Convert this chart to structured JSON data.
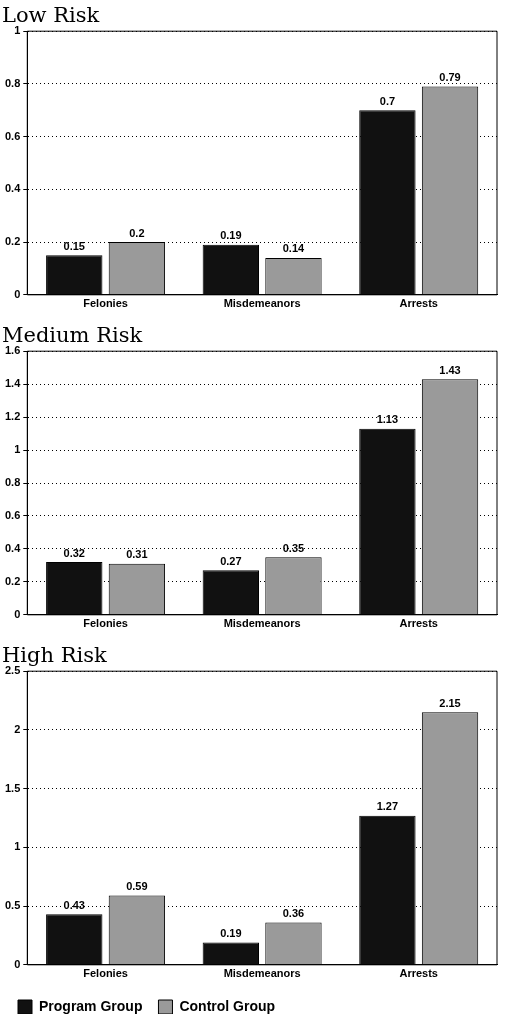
{
  "chart_data": [
    {
      "type": "bar",
      "title": "Low Risk",
      "categories": [
        "Felonies",
        "Misdemeanors",
        "Arrests"
      ],
      "series": [
        {
          "color": "#111111",
          "values": [
            0.15,
            0.19,
            0.7
          ]
        },
        {
          "color": "#9a9a9a",
          "values": [
            0.2,
            0.14,
            0.79
          ]
        }
      ],
      "ylim": [
        0,
        1
      ],
      "yticks": [
        0,
        0.2,
        0.4,
        0.6,
        0.8,
        1
      ],
      "grid": "y",
      "data_labels": true,
      "legend": false
    },
    {
      "type": "bar",
      "title": "Medium Risk",
      "categories": [
        "Felonies",
        "Misdemeanors",
        "Arrests"
      ],
      "series": [
        {
          "color": "#111111",
          "values": [
            0.32,
            0.27,
            1.13
          ]
        },
        {
          "color": "#9a9a9a",
          "values": [
            0.31,
            0.35,
            1.43
          ]
        }
      ],
      "ylim": [
        0,
        1.6
      ],
      "yticks": [
        0,
        0.2,
        0.4,
        0.6,
        0.8,
        1,
        1.2,
        1.4,
        1.6
      ],
      "grid": "y",
      "data_labels": true,
      "legend": false
    },
    {
      "type": "bar",
      "title": "High Risk",
      "categories": [
        "Felonies",
        "Misdemeanors",
        "Arrests"
      ],
      "series": [
        {
          "name": "Program Group",
          "color": "#111111",
          "values": [
            0.43,
            0.19,
            1.27
          ]
        },
        {
          "name": "Control Group",
          "color": "#9a9a9a",
          "values": [
            0.59,
            0.36,
            2.15
          ]
        }
      ],
      "ylim": [
        0,
        2.5
      ],
      "yticks": [
        0,
        0.5,
        1,
        1.5,
        2,
        2.5
      ],
      "grid": "y",
      "data_labels": true,
      "legend": "bottom left"
    }
  ]
}
